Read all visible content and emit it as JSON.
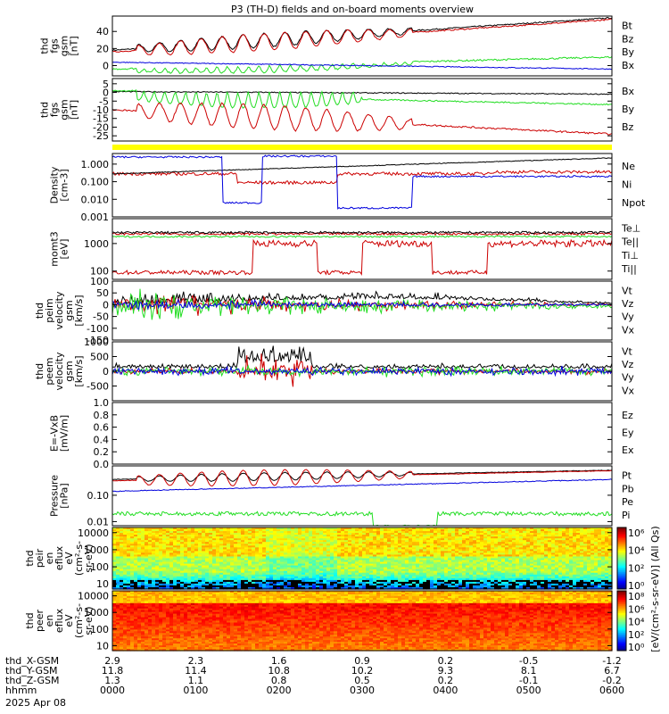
{
  "title": "P3 (TH-D) fields and on-board moments overview",
  "colors": {
    "black": "#000000",
    "red": "#cc0000",
    "green": "#22dd22",
    "blue": "#0000dd",
    "yellow": "#ffff00"
  },
  "chart_data": [
    {
      "type": "line",
      "ylabel": [
        "thd",
        "fgs",
        "gsm",
        "[nT]"
      ],
      "ylim": [
        -12,
        58
      ],
      "yticks": [
        "40",
        "20",
        "0"
      ],
      "ytick_values": [
        40,
        20,
        0
      ],
      "ylog": false,
      "series": [
        {
          "name": "Bt",
          "color": "#000000",
          "shape": "bt_dipo"
        },
        {
          "name": "Bz",
          "color": "#cc0000",
          "shape": "bz_dipo"
        },
        {
          "name": "By",
          "color": "#22dd22",
          "shape": "by_dipo"
        },
        {
          "name": "Bx",
          "color": "#0000dd",
          "shape": "bx_dipo"
        }
      ]
    },
    {
      "type": "line",
      "ylabel": [
        "thd",
        "fgs",
        "gsm",
        "[nT]"
      ],
      "ylim": [
        -28,
        8
      ],
      "yticks": [
        "5",
        "0",
        "-5",
        "-10",
        "-15",
        "-20",
        "-25"
      ],
      "ytick_values": [
        5,
        0,
        -5,
        -10,
        -15,
        -20,
        -25
      ],
      "ylog": false,
      "series": [
        {
          "name": "Bx",
          "color": "#000000",
          "shape": "bx2"
        },
        {
          "name": "By",
          "color": "#22dd22",
          "shape": "by2"
        },
        {
          "name": "Bz",
          "color": "#cc0000",
          "shape": "bz2"
        }
      ]
    },
    {
      "type": "line",
      "ylabel": [
        "Density",
        "[cm-3]"
      ],
      "ylim": [
        0.001,
        4
      ],
      "yticks": [
        "1.000",
        "0.100",
        "0.010",
        "0.001"
      ],
      "ytick_values": [
        1,
        0.1,
        0.01,
        0.001
      ],
      "ylog": true,
      "series": [
        {
          "name": "Ne",
          "color": "#cc0000",
          "shape": "ne"
        },
        {
          "name": "Ni",
          "color": "#000000",
          "shape": "ni"
        },
        {
          "name": "Npot",
          "color": "#0000dd",
          "shape": "npot"
        }
      ]
    },
    {
      "type": "line",
      "ylabel": [
        "momt3",
        "[eV]"
      ],
      "ylim": [
        50,
        8000
      ],
      "yticks": [
        "1000",
        "100"
      ],
      "ytick_values": [
        1000,
        100
      ],
      "ylog": true,
      "series": [
        {
          "name": "Te⊥",
          "color": "#cc0000",
          "shape": "teperp"
        },
        {
          "name": "Te||",
          "color": "#000000",
          "shape": "tepar"
        },
        {
          "name": "Ti⊥",
          "color": "#cc0000",
          "shape": "tiperp"
        },
        {
          "name": "Ti||",
          "color": "#22dd22",
          "shape": "tipar"
        }
      ]
    },
    {
      "type": "line",
      "ylabel": [
        "thd",
        "peim",
        "velocity",
        "gsm",
        "[km/s]"
      ],
      "ylim": [
        -150,
        100
      ],
      "yticks": [
        "100",
        "50",
        "0",
        "-50",
        "-100",
        "-150"
      ],
      "ytick_values": [
        100,
        50,
        0,
        -50,
        -100,
        -150
      ],
      "ylog": false,
      "series": [
        {
          "name": "Vt",
          "color": "#000000",
          "shape": "vt1"
        },
        {
          "name": "Vz",
          "color": "#cc0000",
          "shape": "vz1"
        },
        {
          "name": "Vy",
          "color": "#22dd22",
          "shape": "vy1"
        },
        {
          "name": "Vx",
          "color": "#0000dd",
          "shape": "vx1"
        }
      ]
    },
    {
      "type": "line",
      "ylabel": [
        "thd",
        "peem",
        "velocity",
        "gsm",
        "[km/s]"
      ],
      "ylim": [
        -1000,
        1000
      ],
      "yticks": [
        "1000",
        "500",
        "0",
        "-500"
      ],
      "ytick_values": [
        1000,
        500,
        0,
        -500
      ],
      "ylog": false,
      "series": [
        {
          "name": "Vt",
          "color": "#000000",
          "shape": "vt2"
        },
        {
          "name": "Vz",
          "color": "#cc0000",
          "shape": "vz2"
        },
        {
          "name": "Vy",
          "color": "#22dd22",
          "shape": "vy2"
        },
        {
          "name": "Vx",
          "color": "#0000dd",
          "shape": "vx2"
        }
      ]
    },
    {
      "type": "line",
      "ylabel": [
        "E=-VxB",
        "[mV/m]"
      ],
      "ylim": [
        0,
        1
      ],
      "yticks": [
        "1.0",
        "0.8",
        "0.6",
        "0.4",
        "0.2",
        "0.0"
      ],
      "ytick_values": [
        1,
        0.8,
        0.6,
        0.4,
        0.2,
        0
      ],
      "ylog": false,
      "series": [
        {
          "name": "Ez",
          "color": "#cc0000",
          "shape": "none"
        },
        {
          "name": "Ey",
          "color": "#22dd22",
          "shape": "none"
        },
        {
          "name": "Ex",
          "color": "#0000dd",
          "shape": "none"
        }
      ]
    },
    {
      "type": "line",
      "ylabel": [
        "Pressure",
        "[nPa]"
      ],
      "ylim": [
        0.007,
        1.3
      ],
      "yticks": [
        "0.10",
        "0.01"
      ],
      "ytick_values": [
        0.1,
        0.01
      ],
      "ylog": true,
      "series": [
        {
          "name": "Pt",
          "color": "#000000",
          "shape": "pt"
        },
        {
          "name": "Pb",
          "color": "#cc0000",
          "shape": "pb"
        },
        {
          "name": "Pe",
          "color": "#22dd22",
          "shape": "pe"
        },
        {
          "name": "Pi",
          "color": "#0000dd",
          "shape": "pi"
        }
      ]
    },
    {
      "type": "heatmap",
      "ylabel": [
        "thd",
        "peir",
        "en",
        "eflux",
        "eV",
        "(cm^2-s-",
        "sr-eV)"
      ],
      "ylim": [
        5,
        20000
      ],
      "yticks": [
        "10000",
        "1000",
        "100",
        "10"
      ],
      "ytick_values": [
        10000,
        1000,
        100,
        10
      ],
      "ylog": true,
      "pattern": "ion"
    },
    {
      "type": "heatmap",
      "ylabel": [
        "thd",
        "peer",
        "en",
        "eflux",
        "eV",
        "(cm^2-s-",
        "sr-eV)"
      ],
      "ylim": [
        5,
        20000
      ],
      "yticks": [
        "10000",
        "1000",
        "100",
        "10"
      ],
      "ytick_values": [
        10000,
        1000,
        100,
        10
      ],
      "ylog": true,
      "pattern": "electron"
    }
  ],
  "colorbar": {
    "ticks": [
      "10^8",
      "10^6",
      "10^4",
      "10^2",
      "10^0"
    ],
    "upper_ticks": [
      "10^6",
      "10^4",
      "10^2",
      "10^0"
    ],
    "label": "[eV/(cm^2-s-sr-eV)] (All Qs)"
  },
  "xaxis": {
    "rows": [
      {
        "label": "thd_X-GSM",
        "values": [
          "2.9",
          "2.3",
          "1.6",
          "0.9",
          "0.2",
          "-0.5",
          "-1.2"
        ]
      },
      {
        "label": "thd_Y-GSM",
        "values": [
          "11.8",
          "11.4",
          "10.8",
          "10.2",
          "9.3",
          "8.1",
          "6.7"
        ]
      },
      {
        "label": "thd_Z-GSM",
        "values": [
          "1.3",
          "1.1",
          "0.8",
          "0.5",
          "0.2",
          "-0.1",
          "-0.2"
        ]
      },
      {
        "label": "hhmm",
        "values": [
          "0000",
          "0100",
          "0200",
          "0300",
          "0400",
          "0500",
          "0600"
        ]
      }
    ],
    "date": "2025 Apr 08"
  }
}
